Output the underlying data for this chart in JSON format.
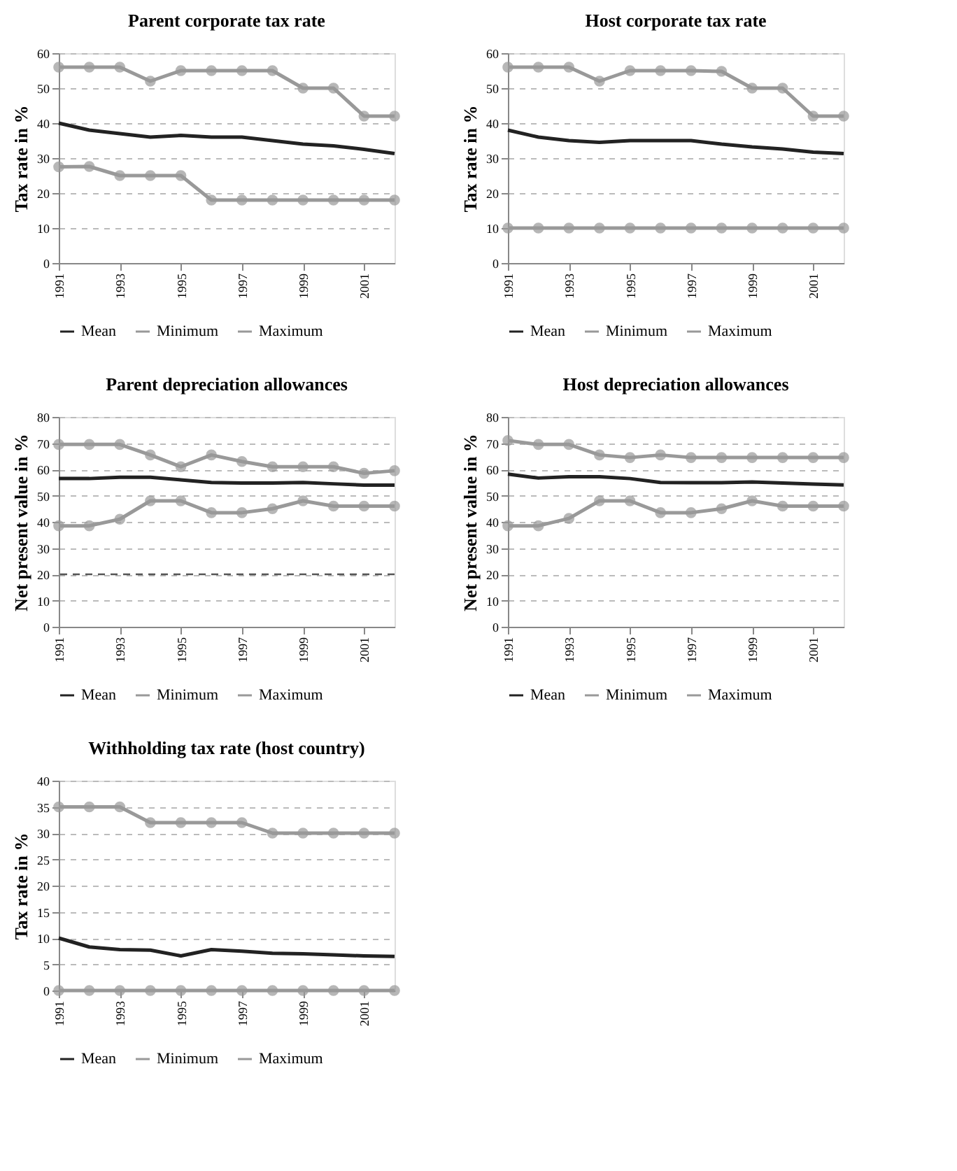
{
  "chart_data": [
    {
      "type": "line",
      "title": "Parent corporate tax rate",
      "ylabel": "Tax rate in %",
      "x": [
        1991,
        1992,
        1993,
        1994,
        1995,
        1996,
        1997,
        1998,
        1999,
        2000,
        2001,
        2002
      ],
      "xlim": [
        1991,
        2002
      ],
      "xticks": [
        1991,
        1993,
        1995,
        1997,
        1999,
        2001
      ],
      "ylim": [
        0,
        60
      ],
      "yticks": [
        0,
        10,
        20,
        30,
        40,
        50,
        60
      ],
      "grid": "y",
      "legend": "bottom",
      "series": [
        {
          "name": "Mean",
          "color": "#222222",
          "marker": "none",
          "values": [
            40,
            38,
            37,
            36,
            36.5,
            36,
            36,
            35,
            34,
            33.5,
            32.5,
            31.3
          ]
        },
        {
          "name": "Minimum",
          "color": "#999999",
          "marker": "circle",
          "values": [
            27.5,
            27.6,
            25,
            25,
            25,
            18,
            18,
            18,
            18,
            18,
            18,
            18
          ]
        },
        {
          "name": "Maximum",
          "color": "#999999",
          "marker": "circle",
          "values": [
            56,
            56,
            56,
            52,
            55,
            55,
            55,
            55,
            50,
            50,
            42,
            42
          ]
        }
      ]
    },
    {
      "type": "line",
      "title": "Host corporate tax rate",
      "ylabel": "Tax rate in %",
      "x": [
        1991,
        1992,
        1993,
        1994,
        1995,
        1996,
        1997,
        1998,
        1999,
        2000,
        2001,
        2002
      ],
      "xlim": [
        1991,
        2002
      ],
      "xticks": [
        1991,
        1993,
        1995,
        1997,
        1999,
        2001
      ],
      "ylim": [
        0,
        60
      ],
      "yticks": [
        0,
        10,
        20,
        30,
        40,
        50,
        60
      ],
      "grid": "y",
      "legend": "bottom",
      "series": [
        {
          "name": "Mean",
          "color": "#222222",
          "marker": "none",
          "values": [
            38,
            36,
            35,
            34.5,
            35,
            35,
            35,
            34,
            33.2,
            32.6,
            31.7,
            31.3
          ]
        },
        {
          "name": "Minimum",
          "color": "#999999",
          "marker": "circle",
          "values": [
            10,
            10,
            10,
            10,
            10,
            10,
            10,
            10,
            10,
            10,
            10,
            10
          ]
        },
        {
          "name": "Maximum",
          "color": "#999999",
          "marker": "circle",
          "values": [
            56,
            56,
            56,
            52,
            55,
            55,
            55,
            54.8,
            50,
            50,
            42,
            42
          ]
        }
      ]
    },
    {
      "type": "line",
      "title": "Parent depreciation allowances",
      "ylabel": "Net present value in %",
      "x": [
        1991,
        1992,
        1993,
        1994,
        1995,
        1996,
        1997,
        1998,
        1999,
        2000,
        2001,
        2002
      ],
      "xlim": [
        1991,
        2002
      ],
      "xticks": [
        1991,
        1993,
        1995,
        1997,
        1999,
        2001
      ],
      "ylim": [
        0,
        80
      ],
      "yticks": [
        0,
        10,
        20,
        30,
        40,
        50,
        60,
        70,
        80
      ],
      "grid": "y",
      "legend": "bottom",
      "ref_lines": [
        {
          "axis": "y",
          "value": 20,
          "color": "#555555",
          "line_style": "dashed"
        }
      ],
      "series": [
        {
          "name": "Mean",
          "color": "#222222",
          "marker": "none",
          "values": [
            56.5,
            56.5,
            57,
            57,
            56,
            55,
            54.8,
            54.8,
            55,
            54.5,
            54,
            54
          ]
        },
        {
          "name": "Minimum",
          "color": "#999999",
          "marker": "circle",
          "values": [
            38.5,
            38.5,
            41,
            48,
            48,
            43.5,
            43.5,
            45,
            48,
            46,
            46,
            46
          ]
        },
        {
          "name": "Maximum",
          "color": "#999999",
          "marker": "circle",
          "values": [
            69.5,
            69.5,
            69.5,
            65.5,
            61,
            65.5,
            63,
            61,
            61,
            61,
            58.5,
            59.5
          ]
        }
      ]
    },
    {
      "type": "line",
      "title": "Host depreciation allowances",
      "ylabel": "Net present value in %",
      "x": [
        1991,
        1992,
        1993,
        1994,
        1995,
        1996,
        1997,
        1998,
        1999,
        2000,
        2001,
        2002
      ],
      "xlim": [
        1991,
        2002
      ],
      "xticks": [
        1991,
        1993,
        1995,
        1997,
        1999,
        2001
      ],
      "ylim": [
        0,
        80
      ],
      "yticks": [
        0,
        10,
        20,
        30,
        40,
        50,
        60,
        70,
        80
      ],
      "grid": "y",
      "legend": "bottom",
      "series": [
        {
          "name": "Mean",
          "color": "#222222",
          "marker": "none",
          "values": [
            58.2,
            56.7,
            57.2,
            57.2,
            56.5,
            55,
            54.9,
            54.9,
            55.2,
            54.8,
            54.4,
            54.1
          ]
        },
        {
          "name": "Minimum",
          "color": "#999999",
          "marker": "circle",
          "values": [
            38.5,
            38.5,
            41.3,
            48,
            48,
            43.5,
            43.5,
            45,
            48,
            46,
            46,
            46
          ]
        },
        {
          "name": "Maximum",
          "color": "#999999",
          "marker": "circle",
          "values": [
            71,
            69.5,
            69.5,
            65.5,
            64.5,
            65.5,
            64.5,
            64.5,
            64.5,
            64.5,
            64.5,
            64.5
          ]
        }
      ]
    },
    {
      "type": "line",
      "title": "Withholding tax rate (host country)",
      "ylabel": "Tax rate in %",
      "x": [
        1991,
        1992,
        1993,
        1994,
        1995,
        1996,
        1997,
        1998,
        1999,
        2000,
        2001,
        2002
      ],
      "xlim": [
        1991,
        2002
      ],
      "xticks": [
        1991,
        1993,
        1995,
        1997,
        1999,
        2001
      ],
      "ylim": [
        0,
        40
      ],
      "yticks": [
        0,
        5,
        10,
        15,
        20,
        25,
        30,
        35,
        40
      ],
      "grid": "y",
      "legend": "bottom",
      "series": [
        {
          "name": "Mean",
          "color": "#222222",
          "marker": "none",
          "values": [
            10,
            8.3,
            7.8,
            7.7,
            6.6,
            7.8,
            7.5,
            7.1,
            7,
            6.8,
            6.6,
            6.5
          ]
        },
        {
          "name": "Minimum",
          "color": "#999999",
          "marker": "circle",
          "values": [
            0,
            0,
            0,
            0,
            0,
            0,
            0,
            0,
            0,
            0,
            0,
            0
          ]
        },
        {
          "name": "Maximum",
          "color": "#999999",
          "marker": "circle",
          "values": [
            35,
            35,
            35,
            32,
            32,
            32,
            32,
            30,
            30,
            30,
            30,
            30
          ]
        }
      ]
    }
  ]
}
